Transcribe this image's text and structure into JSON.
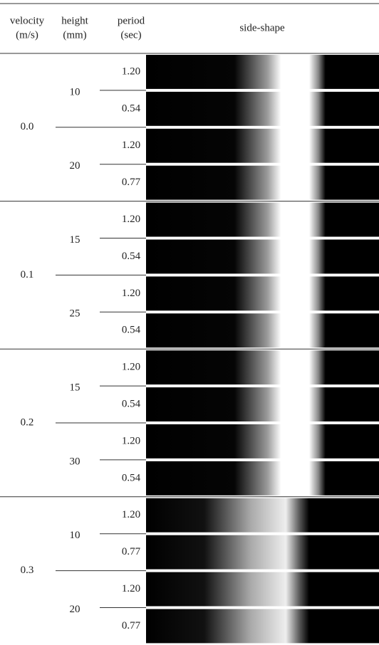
{
  "header": {
    "velocity": [
      "velocity",
      "(m/s)"
    ],
    "height": [
      "height",
      "(mm)"
    ],
    "period": [
      "period",
      "(sec)"
    ],
    "side_shape": "side-shape"
  },
  "groups": [
    {
      "velocity": "0.0",
      "heights": [
        {
          "height": "10",
          "periods": [
            "1.20",
            "0.54"
          ]
        },
        {
          "height": "20",
          "periods": [
            "1.20",
            "0.77"
          ]
        }
      ]
    },
    {
      "velocity": "0.1",
      "heights": [
        {
          "height": "15",
          "periods": [
            "1.20",
            "0.54"
          ]
        },
        {
          "height": "25",
          "periods": [
            "1.20",
            "0.54"
          ]
        }
      ]
    },
    {
      "velocity": "0.2",
      "heights": [
        {
          "height": "15",
          "periods": [
            "1.20",
            "0.54"
          ]
        },
        {
          "height": "30",
          "periods": [
            "1.20",
            "0.54"
          ]
        }
      ]
    },
    {
      "velocity": "0.3",
      "heights": [
        {
          "height": "10",
          "periods": [
            "1.20",
            "0.77"
          ]
        },
        {
          "height": "20",
          "periods": [
            "1.20",
            "0.77"
          ]
        }
      ]
    }
  ]
}
